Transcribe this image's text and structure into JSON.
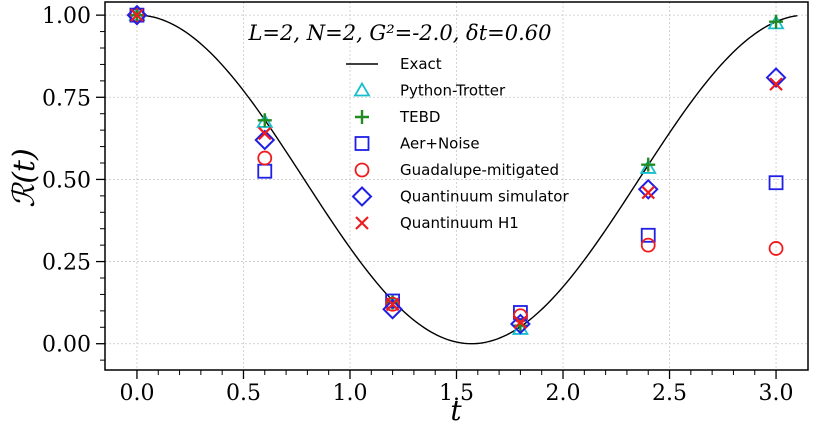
{
  "chart_data": {
    "type": "scatter",
    "title": "L=2, N=2, G²=-2.0, δt=0.60",
    "xlabel": "t",
    "ylabel": "ℛ(t)",
    "xlim": [
      -0.15,
      3.15
    ],
    "ylim": [
      -0.08,
      1.04
    ],
    "xticks": [
      "0.0",
      "0.5",
      "1.0",
      "1.5",
      "2.0",
      "2.5",
      "3.0"
    ],
    "xtick_values": [
      0,
      0.5,
      1,
      1.5,
      2,
      2.5,
      3
    ],
    "yticks": [
      "0.00",
      "0.25",
      "0.50",
      "0.75",
      "1.00"
    ],
    "ytick_values": [
      0,
      0.25,
      0.5,
      0.75,
      1.0
    ],
    "grid": true,
    "legend_position": "top-center",
    "exact_curve": {
      "name": "Exact",
      "t_max": 3.1,
      "omega": 1.0,
      "color": "#000000"
    },
    "series": [
      {
        "name": "Python-Trotter",
        "marker": "triangle",
        "color": "#17becf",
        "x": [
          0,
          0.6,
          1.2,
          1.8,
          2.4,
          3.0
        ],
        "y": [
          1.0,
          0.675,
          0.125,
          0.045,
          0.535,
          0.975
        ]
      },
      {
        "name": "TEBD",
        "marker": "plus",
        "color": "#228b22",
        "x": [
          0,
          0.6,
          1.2,
          1.8,
          2.4,
          3.0
        ],
        "y": [
          1.0,
          0.68,
          0.125,
          0.055,
          0.545,
          0.98
        ]
      },
      {
        "name": "Aer+Noise",
        "marker": "square",
        "color": "#1f1fe6",
        "x": [
          0,
          0.6,
          1.2,
          1.8,
          2.4,
          3.0
        ],
        "y": [
          1.0,
          0.525,
          0.13,
          0.095,
          0.33,
          0.49
        ]
      },
      {
        "name": "Guadalupe-mitigated",
        "marker": "circle",
        "color": "#ee1c1c",
        "x": [
          0,
          0.6,
          1.2,
          1.8,
          2.4,
          3.0
        ],
        "y": [
          1.0,
          0.565,
          0.12,
          0.085,
          0.3,
          0.29
        ]
      },
      {
        "name": "Quantinuum simulator",
        "marker": "diamond",
        "color": "#1f1fe6",
        "x": [
          0,
          0.6,
          1.2,
          1.8,
          2.4,
          3.0
        ],
        "y": [
          1.0,
          0.62,
          0.105,
          0.06,
          0.47,
          0.81
        ]
      },
      {
        "name": "Quantinuum H1",
        "marker": "x",
        "color": "#ee1c1c",
        "x": [
          0,
          0.6,
          1.2,
          1.8,
          2.4,
          3.0
        ],
        "y": [
          1.0,
          0.64,
          0.12,
          0.065,
          0.46,
          0.79
        ]
      }
    ]
  }
}
